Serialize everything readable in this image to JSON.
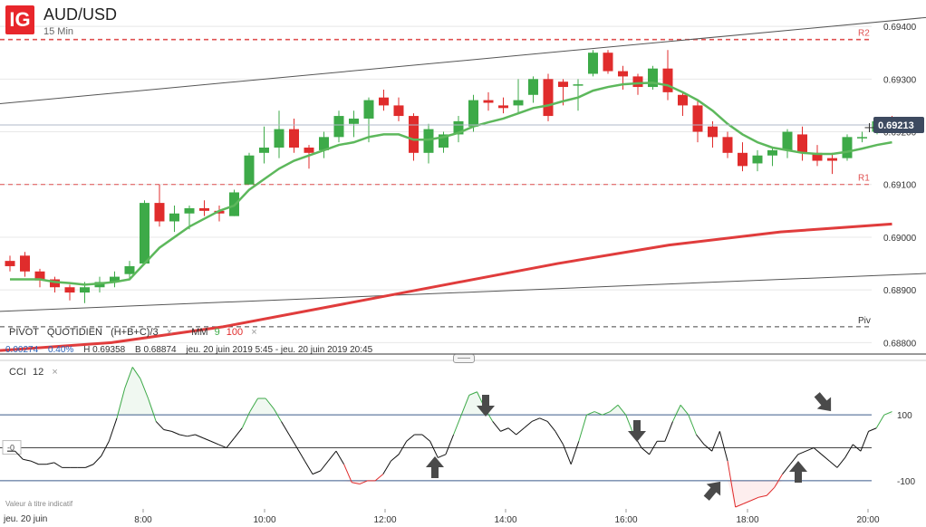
{
  "header": {
    "logo_text": "IG",
    "symbol": "AUD/USD",
    "timeframe": "15 Min"
  },
  "indicators": {
    "pivot": {
      "name": "PIVOT",
      "type": "QUOTIDIEN",
      "formula": "(H+B+C)/3",
      "close_glyph": "×"
    },
    "ma": {
      "name": "MM",
      "fast": "9",
      "slow": "100",
      "close_glyph": "×"
    },
    "cci": {
      "name": "CCI",
      "period": "12",
      "close_glyph": "×"
    }
  },
  "stats": {
    "change": "0.00274",
    "change_pct": "0.40%",
    "high": "H 0.69358",
    "low": "B 0.68874",
    "range": "jeu. 20 juin 2019 5:45 - jeu. 20 juin 2019 20:45"
  },
  "disclaimer": "Valeur à titre indicatif",
  "x_axis": {
    "start_label": "jeu. 20 juin"
  },
  "colors": {
    "up": "#3daa48",
    "down": "#e02c2c",
    "ma_fast": "#5db85c",
    "ma_slow": "#e03c3c",
    "pivot_line": "#e05050"
  },
  "chart_data": [
    {
      "type": "candlestick",
      "title": "AUD/USD",
      "time_labels": [
        "8:00",
        "10:00",
        "12:00",
        "14:00",
        "16:00",
        "18:00",
        "20:00"
      ],
      "y_ticks": [
        "0.69400",
        "0.69300",
        "0.69200",
        "0.69100",
        "0.69000",
        "0.68900",
        "0.68800"
      ],
      "ylim": [
        0.6878,
        0.6945
      ],
      "current_price": "0.69213",
      "levels": [
        {
          "name": "R2",
          "value": 0.69375
        },
        {
          "name": "R1",
          "value": 0.691
        },
        {
          "name": "Piv",
          "value": 0.6883
        }
      ],
      "candles_ohlc": [
        [
          0.68955,
          0.68965,
          0.68935,
          0.68945
        ],
        [
          0.68965,
          0.68972,
          0.68925,
          0.68935
        ],
        [
          0.68935,
          0.6894,
          0.68905,
          0.68918
        ],
        [
          0.6892,
          0.68925,
          0.68895,
          0.68905
        ],
        [
          0.68905,
          0.6891,
          0.6888,
          0.68895
        ],
        [
          0.68895,
          0.68915,
          0.68875,
          0.68905
        ],
        [
          0.68905,
          0.68925,
          0.68895,
          0.68915
        ],
        [
          0.68915,
          0.68935,
          0.68905,
          0.68925
        ],
        [
          0.6893,
          0.68955,
          0.6892,
          0.68945
        ],
        [
          0.6895,
          0.6907,
          0.6895,
          0.69065
        ],
        [
          0.69065,
          0.691,
          0.6902,
          0.6903
        ],
        [
          0.6903,
          0.6906,
          0.6901,
          0.69045
        ],
        [
          0.69045,
          0.6906,
          0.69015,
          0.69055
        ],
        [
          0.69055,
          0.6907,
          0.6904,
          0.6905
        ],
        [
          0.6905,
          0.6906,
          0.6903,
          0.69045
        ],
        [
          0.6904,
          0.6909,
          0.6904,
          0.69085
        ],
        [
          0.691,
          0.6916,
          0.691,
          0.69155
        ],
        [
          0.6916,
          0.6921,
          0.6914,
          0.6917
        ],
        [
          0.6917,
          0.6924,
          0.6915,
          0.69205
        ],
        [
          0.69205,
          0.69225,
          0.6916,
          0.6917
        ],
        [
          0.6917,
          0.69175,
          0.6913,
          0.6916
        ],
        [
          0.69165,
          0.692,
          0.6915,
          0.6919
        ],
        [
          0.6919,
          0.6924,
          0.6918,
          0.6923
        ],
        [
          0.69215,
          0.6924,
          0.6919,
          0.69225
        ],
        [
          0.69225,
          0.69265,
          0.6918,
          0.6926
        ],
        [
          0.69265,
          0.6928,
          0.6924,
          0.6925
        ],
        [
          0.6925,
          0.69265,
          0.6922,
          0.6923
        ],
        [
          0.6923,
          0.69235,
          0.69145,
          0.6916
        ],
        [
          0.6916,
          0.69215,
          0.6914,
          0.69205
        ],
        [
          0.6917,
          0.692,
          0.6916,
          0.69195
        ],
        [
          0.69195,
          0.6923,
          0.6918,
          0.6922
        ],
        [
          0.6921,
          0.6927,
          0.692,
          0.6926
        ],
        [
          0.6926,
          0.69275,
          0.6924,
          0.69255
        ],
        [
          0.6925,
          0.69265,
          0.69235,
          0.69245
        ],
        [
          0.6925,
          0.693,
          0.69235,
          0.6926
        ],
        [
          0.6927,
          0.69305,
          0.69255,
          0.693
        ],
        [
          0.693,
          0.6931,
          0.6922,
          0.6923
        ],
        [
          0.69295,
          0.693,
          0.6925,
          0.69285
        ],
        [
          0.6929,
          0.693,
          0.6924,
          0.6929
        ],
        [
          0.6931,
          0.69355,
          0.69305,
          0.6935
        ],
        [
          0.6935,
          0.69355,
          0.6931,
          0.69315
        ],
        [
          0.69315,
          0.69325,
          0.6928,
          0.69305
        ],
        [
          0.69305,
          0.6931,
          0.6927,
          0.69285
        ],
        [
          0.69285,
          0.69325,
          0.6928,
          0.6932
        ],
        [
          0.6932,
          0.69355,
          0.6926,
          0.69275
        ],
        [
          0.6927,
          0.69275,
          0.6923,
          0.6925
        ],
        [
          0.6925,
          0.6926,
          0.6918,
          0.692
        ],
        [
          0.6921,
          0.6922,
          0.6917,
          0.6919
        ],
        [
          0.6919,
          0.692,
          0.6915,
          0.6916
        ],
        [
          0.6916,
          0.6918,
          0.69125,
          0.69135
        ],
        [
          0.6914,
          0.69165,
          0.69125,
          0.69155
        ],
        [
          0.69155,
          0.6917,
          0.69135,
          0.69165
        ],
        [
          0.69165,
          0.69205,
          0.6915,
          0.692
        ],
        [
          0.69195,
          0.6921,
          0.69145,
          0.6916
        ],
        [
          0.6916,
          0.69175,
          0.69135,
          0.69145
        ],
        [
          0.6915,
          0.6916,
          0.6912,
          0.69145
        ],
        [
          0.6915,
          0.69195,
          0.69145,
          0.6919
        ],
        [
          0.6919,
          0.692,
          0.6918,
          0.6919
        ],
        [
          0.692,
          0.69225,
          0.69195,
          0.6922
        ],
        [
          0.69225,
          0.6923,
          0.69205,
          0.69215
        ]
      ],
      "ma9": [
        0.6892,
        0.6892,
        0.6892,
        0.68915,
        0.68913,
        0.6891,
        0.68912,
        0.68915,
        0.6892,
        0.6895,
        0.6898,
        0.69,
        0.6902,
        0.69035,
        0.6905,
        0.6906,
        0.6909,
        0.6911,
        0.6913,
        0.69145,
        0.69155,
        0.69165,
        0.69175,
        0.6918,
        0.6919,
        0.69195,
        0.69195,
        0.69185,
        0.69185,
        0.6919,
        0.69198,
        0.6921,
        0.69218,
        0.69225,
        0.69235,
        0.69245,
        0.6925,
        0.69258,
        0.69265,
        0.69278,
        0.69285,
        0.6929,
        0.69292,
        0.69293,
        0.69288,
        0.69275,
        0.6926,
        0.6924,
        0.69215,
        0.69195,
        0.6918,
        0.6917,
        0.69165,
        0.6916,
        0.69158,
        0.69158,
        0.69162,
        0.69168,
        0.69175,
        0.6918
      ],
      "ma100": [
        0.68785,
        0.688,
        0.6883,
        0.6887,
        0.6891,
        0.6895,
        0.68985,
        0.6901,
        0.69025
      ],
      "trend_lines": [
        {
          "name": "upper-channel",
          "points": [
            [
              0,
              0.69255
            ],
            [
              125,
              0.69585
            ]
          ]
        },
        {
          "name": "lower-channel",
          "points": [
            [
              0,
              0.6886
            ],
            [
              155,
              0.6904
            ]
          ]
        }
      ]
    },
    {
      "type": "line",
      "title": "CCI 12",
      "y_ticks": [
        "100",
        "-100"
      ],
      "ylim": [
        -180,
        260
      ],
      "values": [
        -10,
        -10,
        -35,
        -40,
        -50,
        -50,
        -45,
        -60,
        -60,
        -60,
        -60,
        -50,
        -25,
        20,
        90,
        180,
        245,
        210,
        150,
        80,
        55,
        50,
        40,
        35,
        40,
        30,
        20,
        10,
        0,
        30,
        60,
        110,
        150,
        150,
        120,
        80,
        40,
        0,
        -40,
        -80,
        -70,
        -40,
        -10,
        -50,
        -105,
        -110,
        -100,
        -100,
        -80,
        -40,
        -20,
        20,
        40,
        40,
        20,
        -30,
        -20,
        40,
        100,
        160,
        170,
        120,
        80,
        50,
        60,
        40,
        60,
        80,
        90,
        80,
        50,
        10,
        -50,
        20,
        100,
        110,
        100,
        110,
        130,
        100,
        40,
        0,
        -20,
        20,
        20,
        80,
        130,
        100,
        40,
        10,
        -10,
        50,
        -40,
        -180,
        -170,
        -160,
        -150,
        -145,
        -120,
        -80,
        -50,
        -20,
        -10,
        0,
        -20,
        -40,
        -60,
        -30,
        10,
        -10,
        50,
        60,
        100,
        110
      ]
    }
  ]
}
